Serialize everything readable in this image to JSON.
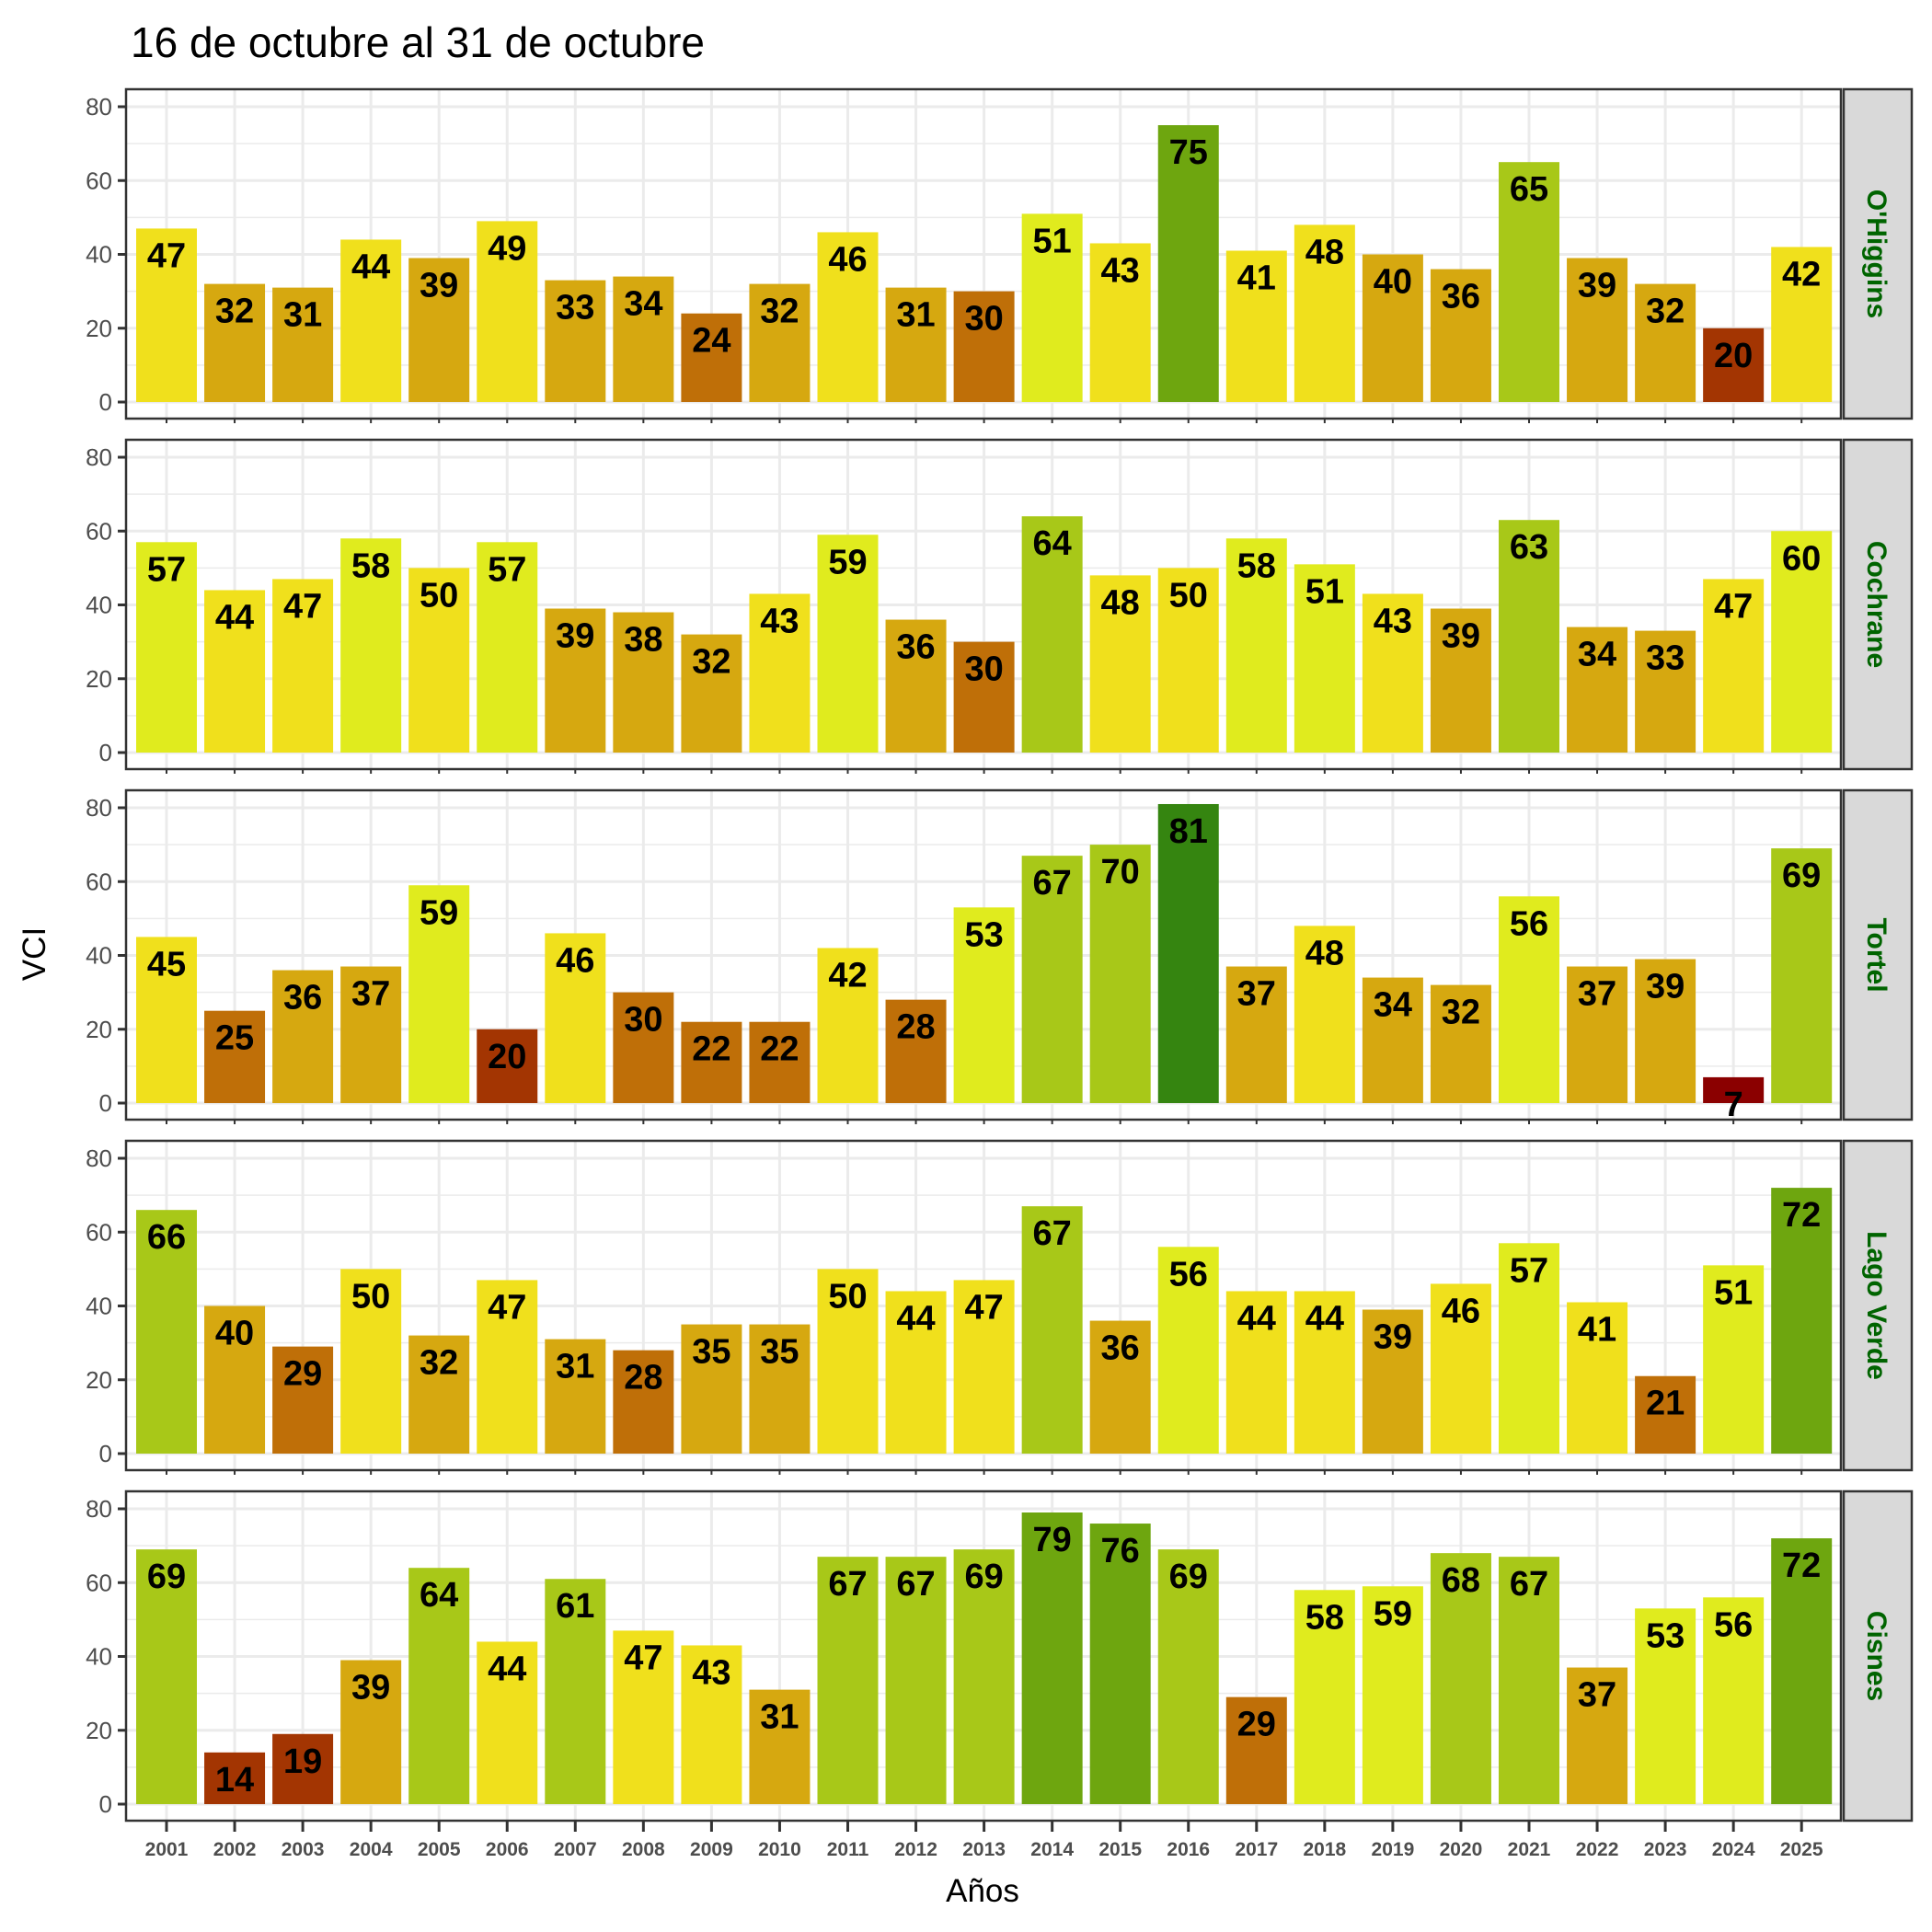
{
  "chart_data": {
    "type": "bar",
    "title": "16 de octubre al 31 de octubre",
    "xlabel": "Años",
    "ylabel": "VCI",
    "ylim": [
      0,
      84
    ],
    "yticks": [
      0,
      20,
      40,
      60,
      80
    ],
    "grid": true,
    "legend": "none",
    "facet_position": "right",
    "categories": [
      "2001",
      "2002",
      "2003",
      "2004",
      "2005",
      "2006",
      "2007",
      "2008",
      "2009",
      "2010",
      "2011",
      "2012",
      "2013",
      "2014",
      "2015",
      "2016",
      "2017",
      "2018",
      "2019",
      "2020",
      "2021",
      "2022",
      "2023",
      "2024",
      "2025"
    ],
    "color_bins": [
      {
        "max": 10,
        "color": "#8b0000"
      },
      {
        "max": 20,
        "color": "#a33502"
      },
      {
        "max": 30,
        "color": "#bf6f08"
      },
      {
        "max": 40,
        "color": "#d6a810"
      },
      {
        "max": 50,
        "color": "#f0e01c"
      },
      {
        "max": 60,
        "color": "#e0eb1e"
      },
      {
        "max": 70,
        "color": "#a8c818"
      },
      {
        "max": 80,
        "color": "#6ea60f"
      },
      {
        "max": 100,
        "color": "#358510"
      }
    ],
    "series": [
      {
        "name": "O'Higgins",
        "values": [
          47,
          32,
          31,
          44,
          39,
          49,
          33,
          34,
          24,
          32,
          46,
          31,
          30,
          51,
          43,
          75,
          41,
          48,
          40,
          36,
          65,
          39,
          32,
          20,
          42
        ]
      },
      {
        "name": "Cochrane",
        "values": [
          57,
          44,
          47,
          58,
          50,
          57,
          39,
          38,
          32,
          43,
          59,
          36,
          30,
          64,
          48,
          50,
          58,
          51,
          43,
          39,
          63,
          34,
          33,
          47,
          60
        ]
      },
      {
        "name": "Tortel",
        "values": [
          45,
          25,
          36,
          37,
          59,
          20,
          46,
          30,
          22,
          22,
          42,
          28,
          53,
          67,
          70,
          81,
          37,
          48,
          34,
          32,
          56,
          37,
          39,
          7,
          69
        ]
      },
      {
        "name": "Lago Verde",
        "values": [
          66,
          40,
          29,
          50,
          32,
          47,
          31,
          28,
          35,
          35,
          50,
          44,
          47,
          67,
          36,
          56,
          44,
          44,
          39,
          46,
          57,
          41,
          21,
          51,
          72
        ]
      },
      {
        "name": "Cisnes",
        "values": [
          69,
          14,
          19,
          39,
          64,
          44,
          61,
          47,
          43,
          31,
          67,
          67,
          69,
          79,
          76,
          69,
          29,
          58,
          59,
          68,
          67,
          37,
          53,
          56,
          72
        ]
      }
    ]
  }
}
